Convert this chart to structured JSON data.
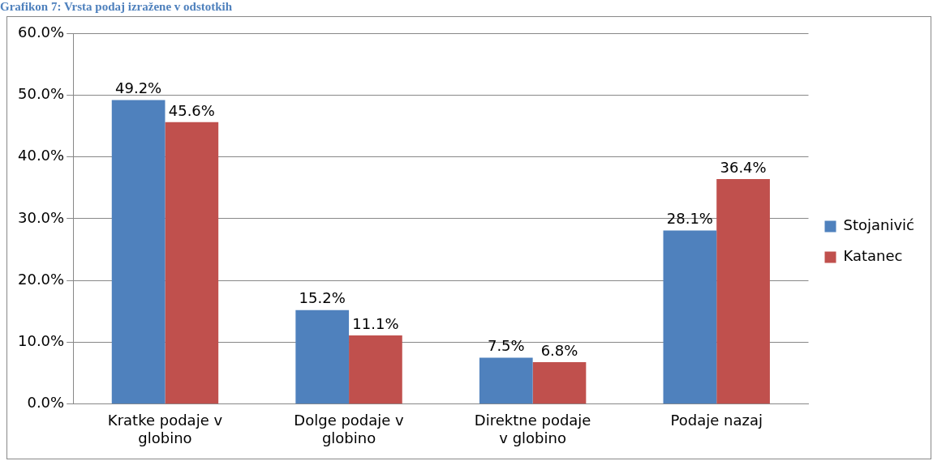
{
  "chart_data": {
    "type": "bar",
    "title": "Grafikon 7: Vrsta podaj izražene v odstotkih",
    "categories": [
      "Kratke podaje v globino",
      "Dolge podaje v globino",
      "Direktne podaje v globino",
      "Podaje nazaj"
    ],
    "series": [
      {
        "name": "Stojanivić",
        "color": "#4f81bd",
        "values": [
          49.2,
          15.2,
          7.5,
          28.1
        ],
        "value_labels": [
          "49.2%",
          "15.2%",
          "7.5%",
          "28.1%"
        ]
      },
      {
        "name": "Katanec",
        "color": "#c0504d",
        "values": [
          45.6,
          11.1,
          6.8,
          36.4
        ],
        "value_labels": [
          "45.6%",
          "11.1%",
          "6.8%",
          "36.4%"
        ]
      }
    ],
    "ylim": [
      0,
      60
    ],
    "yticks": [
      {
        "value": 0,
        "label": "0.0%"
      },
      {
        "value": 10,
        "label": "10.0%"
      },
      {
        "value": 20,
        "label": "20.0%"
      },
      {
        "value": 30,
        "label": "30.0%"
      },
      {
        "value": 40,
        "label": "40.0%"
      },
      {
        "value": 50,
        "label": "50.0%"
      },
      {
        "value": 60,
        "label": "60.0%"
      }
    ],
    "grid": "y",
    "legend": "right"
  }
}
